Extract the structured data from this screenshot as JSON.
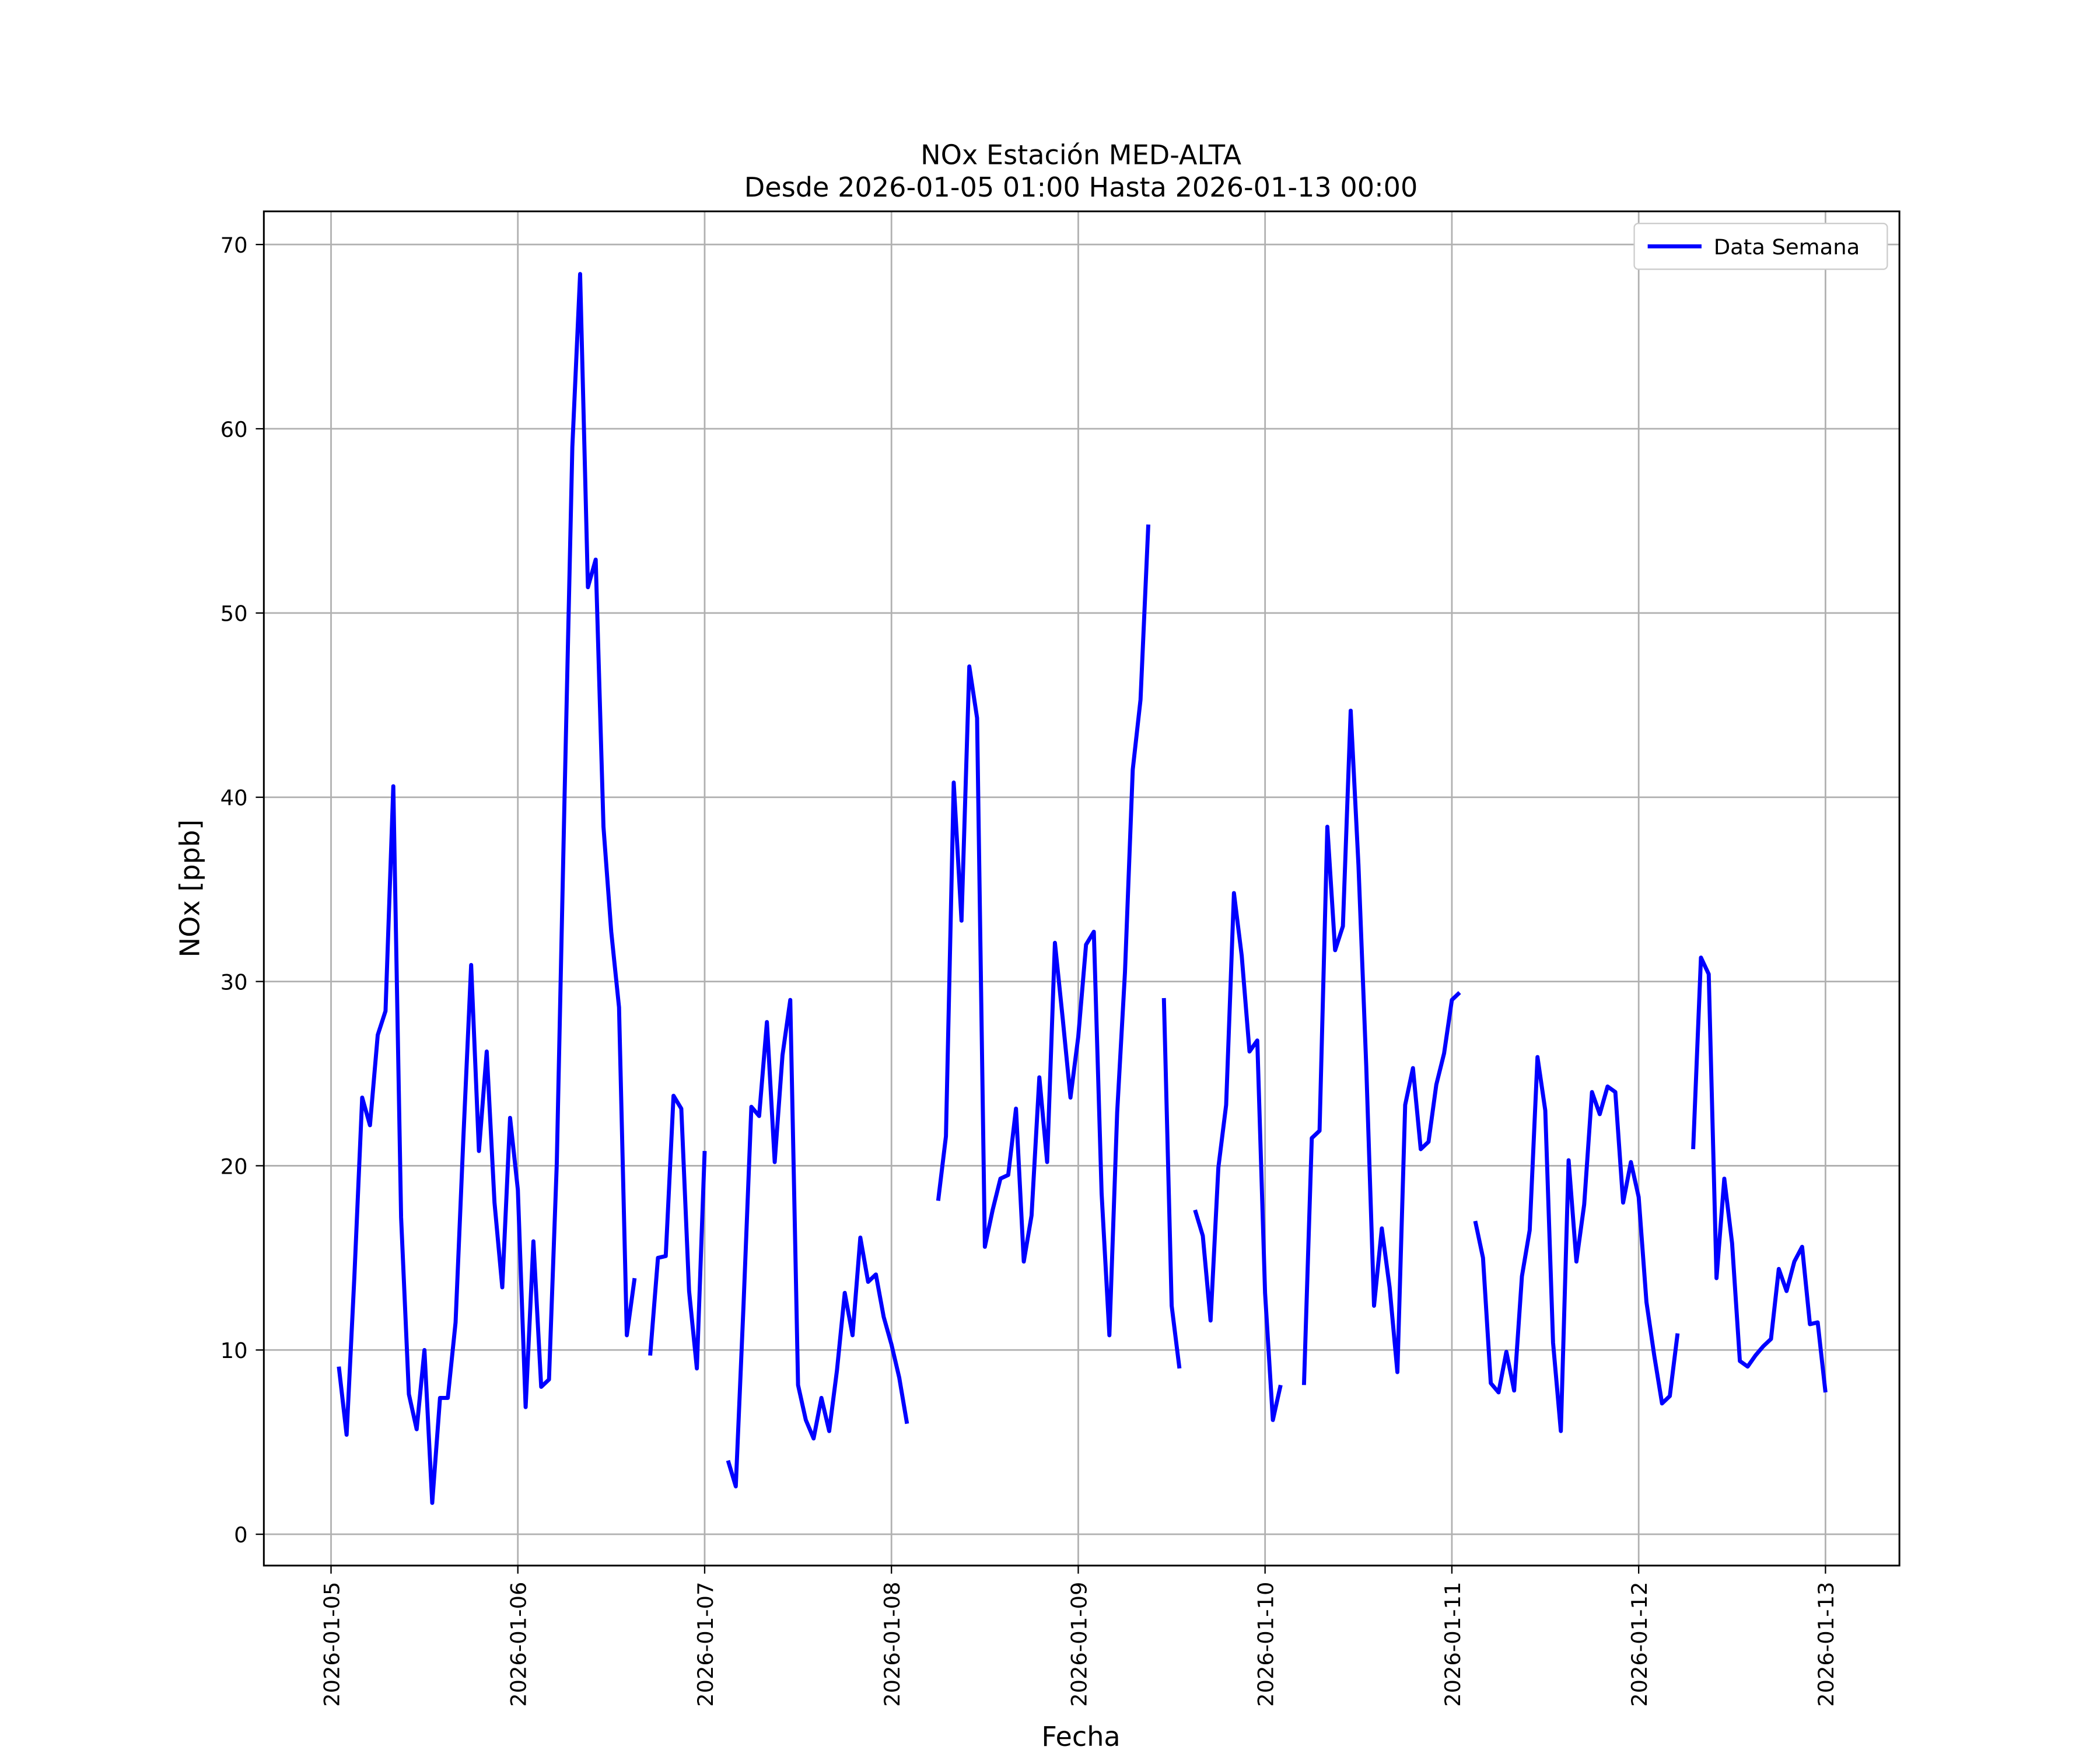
{
  "chart_data": {
    "type": "line",
    "title": "NOx Estación MED-ALTA",
    "subtitle": "Desde 2026-01-05 01:00 Hasta 2026-01-13 00:00",
    "xlabel": "Fecha",
    "ylabel": "NOx [ppb]",
    "xlim": [
      "2026-01-04 15:22",
      "2026-01-13 09:30"
    ],
    "xticks": [
      "2026-01-05",
      "2026-01-06",
      "2026-01-07",
      "2026-01-08",
      "2026-01-09",
      "2026-01-10",
      "2026-01-11",
      "2026-01-12",
      "2026-01-13"
    ],
    "ylim": [
      -1.7,
      71.8
    ],
    "yticks": [
      0,
      10,
      20,
      30,
      40,
      50,
      60,
      70
    ],
    "grid": true,
    "legend": "upper right",
    "x": [
      "2026-01-05 01:00",
      "2026-01-05 02:00",
      "2026-01-05 03:00",
      "2026-01-05 04:00",
      "2026-01-05 05:00",
      "2026-01-05 06:00",
      "2026-01-05 07:00",
      "2026-01-05 08:00",
      "2026-01-05 09:00",
      "2026-01-05 10:00",
      "2026-01-05 11:00",
      "2026-01-05 12:00",
      "2026-01-05 13:00",
      "2026-01-05 14:00",
      "2026-01-05 15:00",
      "2026-01-05 16:00",
      "2026-01-05 17:00",
      "2026-01-05 18:00",
      "2026-01-05 19:00",
      "2026-01-05 20:00",
      "2026-01-05 21:00",
      "2026-01-05 22:00",
      "2026-01-05 23:00",
      "2026-01-06 00:00",
      "2026-01-06 01:00",
      "2026-01-06 02:00",
      "2026-01-06 03:00",
      "2026-01-06 04:00",
      "2026-01-06 05:00",
      "2026-01-06 06:00",
      "2026-01-06 07:00",
      "2026-01-06 08:00",
      "2026-01-06 09:00",
      "2026-01-06 10:00",
      "2026-01-06 11:00",
      "2026-01-06 12:00",
      "2026-01-06 13:00",
      "2026-01-06 14:00",
      "2026-01-06 15:00",
      "2026-01-06 16:00",
      "2026-01-06 17:00",
      "2026-01-06 18:00",
      "2026-01-06 19:00",
      "2026-01-06 20:00",
      "2026-01-06 21:00",
      "2026-01-06 22:00",
      "2026-01-06 23:00",
      "2026-01-07 00:00",
      "2026-01-07 01:00",
      "2026-01-07 02:00",
      "2026-01-07 03:00",
      "2026-01-07 04:00",
      "2026-01-07 05:00",
      "2026-01-07 06:00",
      "2026-01-07 07:00",
      "2026-01-07 08:00",
      "2026-01-07 09:00",
      "2026-01-07 10:00",
      "2026-01-07 11:00",
      "2026-01-07 12:00",
      "2026-01-07 13:00",
      "2026-01-07 14:00",
      "2026-01-07 15:00",
      "2026-01-07 16:00",
      "2026-01-07 17:00",
      "2026-01-07 18:00",
      "2026-01-07 19:00",
      "2026-01-07 20:00",
      "2026-01-07 21:00",
      "2026-01-07 22:00",
      "2026-01-07 23:00",
      "2026-01-08 00:00",
      "2026-01-08 01:00",
      "2026-01-08 02:00",
      "2026-01-08 03:00",
      "2026-01-08 04:00",
      "2026-01-08 05:00",
      "2026-01-08 06:00",
      "2026-01-08 07:00",
      "2026-01-08 08:00",
      "2026-01-08 09:00",
      "2026-01-08 10:00",
      "2026-01-08 11:00",
      "2026-01-08 12:00",
      "2026-01-08 13:00",
      "2026-01-08 14:00",
      "2026-01-08 15:00",
      "2026-01-08 16:00",
      "2026-01-08 17:00",
      "2026-01-08 18:00",
      "2026-01-08 19:00",
      "2026-01-08 20:00",
      "2026-01-08 21:00",
      "2026-01-08 22:00",
      "2026-01-08 23:00",
      "2026-01-09 00:00",
      "2026-01-09 01:00",
      "2026-01-09 02:00",
      "2026-01-09 03:00",
      "2026-01-09 04:00",
      "2026-01-09 05:00",
      "2026-01-09 06:00",
      "2026-01-09 07:00",
      "2026-01-09 08:00",
      "2026-01-09 09:00",
      "2026-01-09 10:00",
      "2026-01-09 11:00",
      "2026-01-09 12:00",
      "2026-01-09 13:00",
      "2026-01-09 14:00",
      "2026-01-09 15:00",
      "2026-01-09 16:00",
      "2026-01-09 17:00",
      "2026-01-09 18:00",
      "2026-01-09 19:00",
      "2026-01-09 20:00",
      "2026-01-09 21:00",
      "2026-01-09 22:00",
      "2026-01-09 23:00",
      "2026-01-10 00:00",
      "2026-01-10 01:00",
      "2026-01-10 02:00",
      "2026-01-10 03:00",
      "2026-01-10 04:00",
      "2026-01-10 05:00",
      "2026-01-10 06:00",
      "2026-01-10 07:00",
      "2026-01-10 08:00",
      "2026-01-10 09:00",
      "2026-01-10 10:00",
      "2026-01-10 11:00",
      "2026-01-10 12:00",
      "2026-01-10 13:00",
      "2026-01-10 14:00",
      "2026-01-10 15:00",
      "2026-01-10 16:00",
      "2026-01-10 17:00",
      "2026-01-10 18:00",
      "2026-01-10 19:00",
      "2026-01-10 20:00",
      "2026-01-10 21:00",
      "2026-01-10 22:00",
      "2026-01-10 23:00",
      "2026-01-11 00:00",
      "2026-01-11 01:00",
      "2026-01-11 02:00",
      "2026-01-11 03:00",
      "2026-01-11 04:00",
      "2026-01-11 05:00",
      "2026-01-11 06:00",
      "2026-01-11 07:00",
      "2026-01-11 08:00",
      "2026-01-11 09:00",
      "2026-01-11 10:00",
      "2026-01-11 11:00",
      "2026-01-11 12:00",
      "2026-01-11 13:00",
      "2026-01-11 14:00",
      "2026-01-11 15:00",
      "2026-01-11 16:00",
      "2026-01-11 17:00",
      "2026-01-11 18:00",
      "2026-01-11 19:00",
      "2026-01-11 20:00",
      "2026-01-11 21:00",
      "2026-01-11 22:00",
      "2026-01-11 23:00",
      "2026-01-12 00:00",
      "2026-01-12 01:00",
      "2026-01-12 02:00",
      "2026-01-12 03:00",
      "2026-01-12 04:00",
      "2026-01-12 05:00",
      "2026-01-12 06:00",
      "2026-01-12 07:00",
      "2026-01-12 08:00",
      "2026-01-12 09:00",
      "2026-01-12 10:00",
      "2026-01-12 11:00",
      "2026-01-12 12:00",
      "2026-01-12 13:00",
      "2026-01-12 14:00",
      "2026-01-12 15:00",
      "2026-01-12 16:00",
      "2026-01-12 17:00",
      "2026-01-12 18:00",
      "2026-01-12 19:00",
      "2026-01-12 20:00",
      "2026-01-12 21:00",
      "2026-01-12 22:00",
      "2026-01-12 23:00",
      "2026-01-13 00:00"
    ],
    "series": [
      {
        "name": "Data Semana",
        "color": "#0000ff",
        "values": [
          9.1,
          5.4,
          14,
          23.7,
          22.2,
          27.1,
          28.4,
          40.6,
          17.2,
          7.6,
          5.7,
          10.0,
          1.7,
          7.4,
          7.4,
          11.5,
          21.5,
          30.9,
          20.8,
          26.2,
          18,
          13.4,
          22.6,
          18.7,
          6.9,
          15.9,
          8.0,
          8.4,
          20.1,
          40,
          59,
          68.4,
          51.4,
          52.9,
          38.4,
          32.7,
          28.6,
          10.8,
          13.9,
          null,
          9.7,
          15.0,
          15.1,
          23.8,
          23.1,
          13.2,
          9.0,
          20.8,
          null,
          null,
          4.0,
          2.6,
          12.5,
          23.2,
          22.7,
          27.8,
          20.2,
          26,
          29.0,
          8.1,
          6.2,
          5.2,
          7.4,
          5.6,
          8.9,
          13.1,
          10.8,
          16.1,
          13.7,
          14.1,
          11.8,
          10.3,
          8.5,
          6.0,
          null,
          null,
          null,
          18.1,
          21.6,
          40.8,
          33.3,
          47.1,
          44.3,
          15.6,
          17.6,
          19.3,
          19.5,
          23.1,
          14.8,
          17.3,
          24.8,
          20.2,
          32.1,
          28,
          23.7,
          27.0,
          32.0,
          32.7,
          18.5,
          10.8,
          22.9,
          30.5,
          41.5,
          45.3,
          54.8,
          null,
          29.1,
          12.4,
          9.0,
          null,
          17.6,
          16.2,
          11.6,
          19.9,
          23.3,
          34.8,
          31.4,
          26.2,
          26.8,
          13.1,
          6.2,
          8.1,
          null,
          null,
          8.1,
          21.5,
          21.9,
          38.4,
          31.7,
          33.0,
          44.7,
          36.3,
          25.4,
          12.4,
          16.6,
          13.4,
          8.8,
          23.3,
          25.3,
          20.9,
          21.3,
          24.4,
          26.1,
          29.0,
          29.4,
          null,
          17.0,
          15.0,
          8.2,
          7.7,
          9.9,
          7.8,
          14.0,
          16.5,
          25.9,
          23.0,
          10.4,
          5.6,
          20.3,
          14.8,
          17.9,
          24.0,
          22.8,
          24.3,
          24.0,
          18.0,
          20.2,
          18.3,
          12.6,
          9.7,
          7.1,
          7.5,
          10.9,
          null,
          20.9,
          31.3,
          30.4,
          13.9,
          19.3,
          15.8,
          9.4,
          9.1,
          9.7,
          10.2,
          10.6,
          14.4,
          13.2,
          14.8,
          15.6,
          11.4,
          11.5,
          7.7
        ]
      }
    ]
  }
}
